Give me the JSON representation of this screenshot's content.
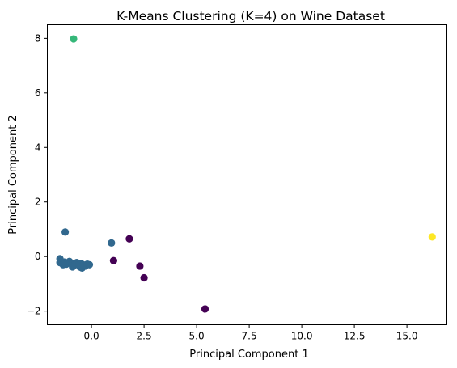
{
  "chart_data": {
    "type": "scatter",
    "title": "K-Means Clustering (K=4) on Wine Dataset",
    "xlabel": "Principal Component 1",
    "ylabel": "Principal Component 2",
    "xlim": [
      -2.1,
      16.9
    ],
    "ylim": [
      -2.5,
      8.5
    ],
    "xticks": [
      0.0,
      2.5,
      5.0,
      7.5,
      10.0,
      12.5,
      15.0
    ],
    "xtick_labels": [
      "0.0",
      "2.5",
      "5.0",
      "7.5",
      "10.0",
      "12.5",
      "15.0"
    ],
    "yticks": [
      -2,
      0,
      2,
      4,
      6,
      8
    ],
    "ytick_labels": [
      "−2",
      "0",
      "2",
      "4",
      "6",
      "8"
    ],
    "grid": false,
    "cluster_colors": [
      "#440154",
      "#31688e",
      "#35b779",
      "#fde725"
    ],
    "points": [
      {
        "x": 16.2,
        "y": 0.72,
        "cluster": 3
      },
      {
        "x": -0.85,
        "y": 7.98,
        "cluster": 2
      },
      {
        "x": 5.4,
        "y": -1.92,
        "cluster": 0
      },
      {
        "x": 1.8,
        "y": 0.65,
        "cluster": 0
      },
      {
        "x": 2.3,
        "y": -0.35,
        "cluster": 0
      },
      {
        "x": 2.5,
        "y": -0.78,
        "cluster": 0
      },
      {
        "x": 1.05,
        "y": -0.15,
        "cluster": 0
      },
      {
        "x": -1.25,
        "y": 0.9,
        "cluster": 1
      },
      {
        "x": 0.95,
        "y": 0.5,
        "cluster": 1
      },
      {
        "x": -1.5,
        "y": -0.08,
        "cluster": 1
      },
      {
        "x": -1.5,
        "y": -0.22,
        "cluster": 1
      },
      {
        "x": -1.4,
        "y": -0.25,
        "cluster": 1
      },
      {
        "x": -1.3,
        "y": -0.2,
        "cluster": 1
      },
      {
        "x": -1.2,
        "y": -0.28,
        "cluster": 1
      },
      {
        "x": -1.05,
        "y": -0.18,
        "cluster": 1
      },
      {
        "x": -0.95,
        "y": -0.25,
        "cluster": 1
      },
      {
        "x": -0.9,
        "y": -0.38,
        "cluster": 1
      },
      {
        "x": -0.8,
        "y": -0.3,
        "cluster": 1
      },
      {
        "x": -0.7,
        "y": -0.22,
        "cluster": 1
      },
      {
        "x": -0.6,
        "y": -0.3,
        "cluster": 1
      },
      {
        "x": -0.5,
        "y": -0.25,
        "cluster": 1
      },
      {
        "x": -0.45,
        "y": -0.42,
        "cluster": 1
      },
      {
        "x": -0.4,
        "y": -0.3,
        "cluster": 1
      },
      {
        "x": -0.3,
        "y": -0.35,
        "cluster": 1
      },
      {
        "x": -0.2,
        "y": -0.28,
        "cluster": 1
      },
      {
        "x": -0.1,
        "y": -0.3,
        "cluster": 1
      },
      {
        "x": -1.35,
        "y": -0.3,
        "cluster": 1
      },
      {
        "x": -0.55,
        "y": -0.38,
        "cluster": 1
      }
    ]
  }
}
